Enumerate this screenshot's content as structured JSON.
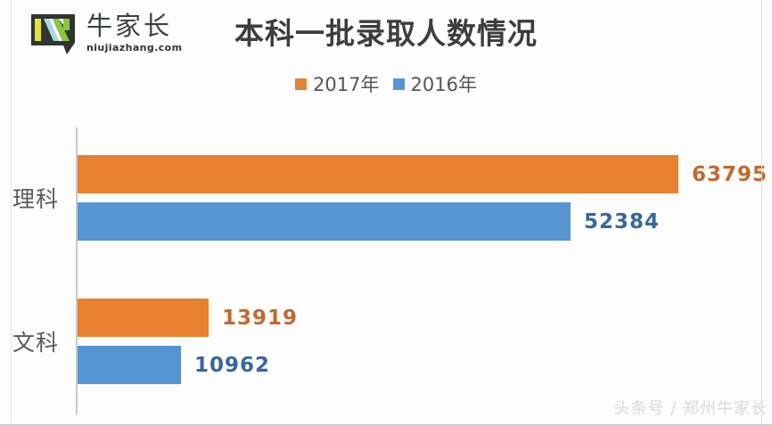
{
  "brand": {
    "name": "牛家长",
    "domain": "niujiazhang.com",
    "logo_colors": {
      "outline": "#2f3531",
      "yellow": "#e4e13b",
      "light_blue": "#a6d9e7",
      "green": "#8cc63f"
    }
  },
  "watermark": "头条号 / 郑州牛家长",
  "chart_data": {
    "type": "bar",
    "orientation": "horizontal",
    "title": "本科一批录取人数情况",
    "categories": [
      "理科",
      "文科"
    ],
    "series": [
      {
        "name": "2017年",
        "color": "#e8812f",
        "label_color": "#bf6a2f",
        "values": [
          63795,
          13919
        ]
      },
      {
        "name": "2016年",
        "color": "#5795d2",
        "label_color": "#38679e",
        "values": [
          52384,
          10962
        ]
      }
    ],
    "xlim": [
      0,
      63795
    ],
    "grid": false,
    "value_axis_visible": false,
    "legend_position": "top",
    "axis_line_color": "#c9c9c9"
  }
}
